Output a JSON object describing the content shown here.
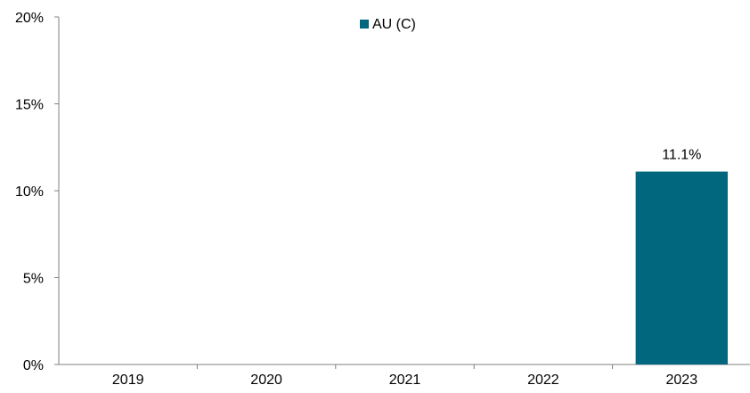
{
  "chart_data": {
    "type": "bar",
    "categories": [
      "2019",
      "2020",
      "2021",
      "2022",
      "2023"
    ],
    "series": [
      {
        "name": "AU (C)",
        "values": [
          null,
          null,
          null,
          null,
          11.1
        ],
        "color": "#00677F",
        "data_labels": [
          "",
          "",
          "",
          "",
          "11.1%"
        ]
      }
    ],
    "y_ticks": [
      "0%",
      "5%",
      "10%",
      "15%",
      "20%"
    ],
    "ylim": [
      0,
      20
    ],
    "y_unit": "%",
    "legend": {
      "placement": "top-center",
      "entries": [
        "AU (C)"
      ]
    },
    "grid": false
  }
}
